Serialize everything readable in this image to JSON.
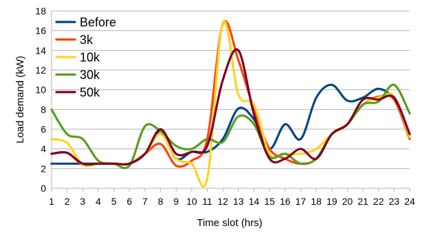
{
  "chart_data": {
    "type": "line",
    "title": "",
    "xlabel": "Time slot (hrs)",
    "ylabel": "Load demand (kW)",
    "x": [
      1,
      2,
      3,
      4,
      5,
      6,
      7,
      8,
      9,
      10,
      11,
      12,
      13,
      14,
      15,
      16,
      17,
      18,
      19,
      20,
      21,
      22,
      23,
      24
    ],
    "xlim": [
      1,
      24
    ],
    "ylim": [
      0,
      18
    ],
    "yticks": [
      0,
      2,
      4,
      6,
      8,
      10,
      12,
      14,
      16,
      18
    ],
    "grid": "horizontal",
    "legend_position": "top-left",
    "series": [
      {
        "name": "Before",
        "color": "#004586",
        "values": [
          2.5,
          2.5,
          2.5,
          2.5,
          2.5,
          2.5,
          3.5,
          5.8,
          3.0,
          3.7,
          3.7,
          5.0,
          8.1,
          7.0,
          4.0,
          6.5,
          5.0,
          9.2,
          10.5,
          8.9,
          9.2,
          10.1,
          9.0,
          5.5
        ]
      },
      {
        "name": "3k",
        "color": "#ff420e",
        "values": [
          3.5,
          3.6,
          2.4,
          2.5,
          2.5,
          2.5,
          3.5,
          4.5,
          2.3,
          2.8,
          5.0,
          16.7,
          13.0,
          8.0,
          4.0,
          3.0,
          2.5,
          3.0,
          5.5,
          6.5,
          8.5,
          9.3,
          9.0,
          5.0
        ]
      },
      {
        "name": "10k",
        "color": "#ffd320",
        "values": [
          5.0,
          4.6,
          2.4,
          2.5,
          2.5,
          2.5,
          3.5,
          5.5,
          3.0,
          2.5,
          1.0,
          16.8,
          9.5,
          8.5,
          3.5,
          3.5,
          3.5,
          4.0,
          5.5,
          6.5,
          8.5,
          9.2,
          9.3,
          5.2
        ]
      },
      {
        "name": "30k",
        "color": "#579d1c",
        "values": [
          8.0,
          5.5,
          5.0,
          2.8,
          2.5,
          2.3,
          6.3,
          5.8,
          4.3,
          4.0,
          5.0,
          4.7,
          7.3,
          6.5,
          3.2,
          3.5,
          2.5,
          3.0,
          5.5,
          6.5,
          8.5,
          8.8,
          10.5,
          7.6
        ]
      },
      {
        "name": "50k",
        "color": "#7e0021",
        "values": [
          3.5,
          3.6,
          2.5,
          2.5,
          2.5,
          2.5,
          3.5,
          6.0,
          3.5,
          3.7,
          4.3,
          11.0,
          14.0,
          7.5,
          3.0,
          3.0,
          4.0,
          3.0,
          5.5,
          6.5,
          9.0,
          9.0,
          9.2,
          5.5
        ]
      }
    ]
  }
}
